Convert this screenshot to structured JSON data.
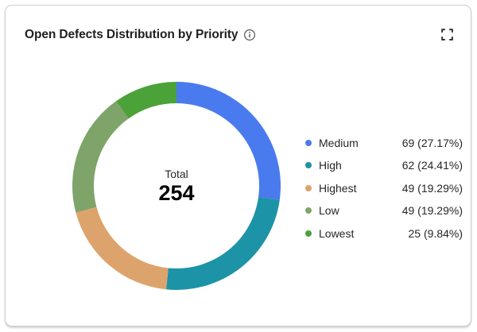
{
  "header": {
    "title": "Open Defects Distribution by Priority",
    "info_icon": "info-icon",
    "expand_icon": "fullscreen-expand-icon"
  },
  "chart_data": {
    "type": "pie",
    "donut": true,
    "title": "Open Defects Distribution by Priority",
    "center_label": "Total",
    "total": 254,
    "legend_position": "right",
    "series": [
      {
        "name": "Medium",
        "value": 69,
        "percent": "27.17%",
        "color": "#4A7BEE"
      },
      {
        "name": "High",
        "value": 62,
        "percent": "24.41%",
        "color": "#1C93A6"
      },
      {
        "name": "Highest",
        "value": 49,
        "percent": "19.29%",
        "color": "#DDA36C"
      },
      {
        "name": "Low",
        "value": 49,
        "percent": "19.29%",
        "color": "#7EA46A"
      },
      {
        "name": "Lowest",
        "value": 25,
        "percent": "9.84%",
        "color": "#4AA238"
      }
    ]
  }
}
